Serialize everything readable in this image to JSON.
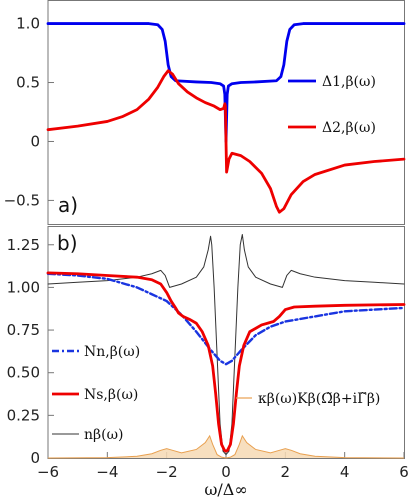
{
  "chart_data": [
    {
      "type": "line",
      "panel_label": "a)",
      "xlim": [
        -6,
        6
      ],
      "ylim": [
        -0.7,
        1.2
      ],
      "y_ticks": [
        "1.0",
        "0.5",
        "0",
        "−0.5"
      ],
      "y_tick_values": [
        1.0,
        0.5,
        0,
        -0.5
      ],
      "grid": false,
      "legend_position": "right",
      "series": [
        {
          "name": "Δ1,β(ω)",
          "color": "#0000ee",
          "points": [
            [
              -6,
              1.0
            ],
            [
              -2.6,
              1.0
            ],
            [
              -2.3,
              0.99
            ],
            [
              -2.15,
              0.95
            ],
            [
              -2.05,
              0.85
            ],
            [
              -1.95,
              0.65
            ],
            [
              -1.85,
              0.55
            ],
            [
              -1.7,
              0.515
            ],
            [
              -1.0,
              0.505
            ],
            [
              -0.5,
              0.5
            ],
            [
              -0.2,
              0.49
            ],
            [
              -0.08,
              0.47
            ],
            [
              -0.04,
              0.4
            ],
            [
              -0.02,
              0.2
            ],
            [
              0,
              0.0
            ],
            [
              0.02,
              0.2
            ],
            [
              0.04,
              0.4
            ],
            [
              0.08,
              0.47
            ],
            [
              0.2,
              0.49
            ],
            [
              0.5,
              0.5
            ],
            [
              1.0,
              0.505
            ],
            [
              1.7,
              0.515
            ],
            [
              1.85,
              0.55
            ],
            [
              1.95,
              0.65
            ],
            [
              2.05,
              0.85
            ],
            [
              2.15,
              0.95
            ],
            [
              2.3,
              0.99
            ],
            [
              2.6,
              1.0
            ],
            [
              6,
              1.0
            ]
          ]
        },
        {
          "name": "Δ2,β(ω)",
          "color": "#ee0000",
          "points": [
            [
              -6,
              0.1
            ],
            [
              -5,
              0.13
            ],
            [
              -4,
              0.17
            ],
            [
              -3.5,
              0.21
            ],
            [
              -3,
              0.27
            ],
            [
              -2.6,
              0.36
            ],
            [
              -2.3,
              0.46
            ],
            [
              -2.1,
              0.55
            ],
            [
              -1.95,
              0.6
            ],
            [
              -1.8,
              0.57
            ],
            [
              -1.6,
              0.49
            ],
            [
              -1.3,
              0.42
            ],
            [
              -1.0,
              0.37
            ],
            [
              -0.7,
              0.33
            ],
            [
              -0.4,
              0.3
            ],
            [
              -0.2,
              0.27
            ],
            [
              -0.08,
              0.28
            ],
            [
              -0.04,
              0.32
            ],
            [
              -0.02,
              0.3
            ],
            [
              0.0,
              0.0
            ],
            [
              0.02,
              -0.26
            ],
            [
              0.05,
              -0.22
            ],
            [
              0.1,
              -0.15
            ],
            [
              0.2,
              -0.1
            ],
            [
              0.5,
              -0.12
            ],
            [
              0.8,
              -0.17
            ],
            [
              1.2,
              -0.27
            ],
            [
              1.5,
              -0.4
            ],
            [
              1.7,
              -0.55
            ],
            [
              1.8,
              -0.6
            ],
            [
              1.95,
              -0.57
            ],
            [
              2.2,
              -0.45
            ],
            [
              2.6,
              -0.34
            ],
            [
              3,
              -0.28
            ],
            [
              4,
              -0.2
            ],
            [
              5,
              -0.17
            ],
            [
              6,
              -0.15
            ]
          ]
        }
      ]
    },
    {
      "type": "line",
      "panel_label": "b)",
      "xlim": [
        -6,
        6
      ],
      "ylim": [
        0,
        1.36
      ],
      "x_ticks": [
        "−6",
        "−4",
        "−2",
        "0",
        "2",
        "4",
        "6"
      ],
      "x_tick_values": [
        -6,
        -4,
        -2,
        0,
        2,
        4,
        6
      ],
      "y_ticks": [
        "1.25",
        "1.00",
        "0.75",
        "0.50",
        "0.25",
        "0"
      ],
      "y_tick_values": [
        1.25,
        1.0,
        0.75,
        0.5,
        0.25,
        0
      ],
      "xlabel": "ω/Δ∞",
      "grid": false,
      "series": [
        {
          "name": "κβ(ω)Kβ(Ω̃β+iΓ̃β)",
          "kind": "area",
          "color": "#e8a050",
          "fill": "#f6d9b4",
          "points": [
            [
              -6,
              0
            ],
            [
              -4,
              0.002
            ],
            [
              -3,
              0.01
            ],
            [
              -2.5,
              0.025
            ],
            [
              -2.2,
              0.045
            ],
            [
              -2.0,
              0.055
            ],
            [
              -1.8,
              0.045
            ],
            [
              -1.5,
              0.03
            ],
            [
              -1.0,
              0.05
            ],
            [
              -0.7,
              0.09
            ],
            [
              -0.55,
              0.13
            ],
            [
              -0.45,
              0.08
            ],
            [
              -0.3,
              0.02
            ],
            [
              -0.15,
              0.005
            ],
            [
              0,
              0.0
            ],
            [
              0.15,
              0.005
            ],
            [
              0.3,
              0.02
            ],
            [
              0.45,
              0.08
            ],
            [
              0.55,
              0.13
            ],
            [
              0.7,
              0.09
            ],
            [
              1.0,
              0.05
            ],
            [
              1.5,
              0.03
            ],
            [
              1.8,
              0.045
            ],
            [
              2.0,
              0.055
            ],
            [
              2.2,
              0.045
            ],
            [
              2.5,
              0.025
            ],
            [
              3,
              0.01
            ],
            [
              4,
              0.002
            ],
            [
              6,
              0
            ]
          ]
        },
        {
          "name": "nβ(ω)",
          "color": "#333333",
          "points": [
            [
              -6,
              1.02
            ],
            [
              -5,
              1.03
            ],
            [
              -4,
              1.04
            ],
            [
              -3,
              1.06
            ],
            [
              -2.5,
              1.08
            ],
            [
              -2.2,
              1.1
            ],
            [
              -2.05,
              1.07
            ],
            [
              -1.9,
              1.0
            ],
            [
              -1.5,
              1.02
            ],
            [
              -1.0,
              1.06
            ],
            [
              -0.75,
              1.12
            ],
            [
              -0.6,
              1.22
            ],
            [
              -0.52,
              1.3
            ],
            [
              -0.48,
              1.25
            ],
            [
              -0.4,
              1.0
            ],
            [
              -0.3,
              0.6
            ],
            [
              -0.2,
              0.2
            ],
            [
              -0.1,
              0.04
            ],
            [
              0,
              0.02
            ],
            [
              0.1,
              0.04
            ],
            [
              0.2,
              0.2
            ],
            [
              0.3,
              0.6
            ],
            [
              0.4,
              1.0
            ],
            [
              0.48,
              1.25
            ],
            [
              0.55,
              1.31
            ],
            [
              0.62,
              1.22
            ],
            [
              0.75,
              1.12
            ],
            [
              1.0,
              1.06
            ],
            [
              1.5,
              1.02
            ],
            [
              1.9,
              1.0
            ],
            [
              2.05,
              1.07
            ],
            [
              2.2,
              1.1
            ],
            [
              2.5,
              1.08
            ],
            [
              3,
              1.06
            ],
            [
              4,
              1.04
            ],
            [
              5,
              1.03
            ],
            [
              6,
              1.02
            ]
          ]
        },
        {
          "name": "Nn,β(ω)",
          "dash": "dashdot",
          "color": "#1a35e0",
          "points": [
            [
              -6,
              1.08
            ],
            [
              -5,
              1.07
            ],
            [
              -4,
              1.05
            ],
            [
              -3,
              1.0
            ],
            [
              -2.5,
              0.96
            ],
            [
              -2.0,
              0.92
            ],
            [
              -1.5,
              0.84
            ],
            [
              -1.0,
              0.74
            ],
            [
              -0.5,
              0.63
            ],
            [
              -0.2,
              0.57
            ],
            [
              0,
              0.55
            ],
            [
              0.2,
              0.57
            ],
            [
              0.5,
              0.63
            ],
            [
              1.0,
              0.72
            ],
            [
              1.5,
              0.77
            ],
            [
              2.0,
              0.8
            ],
            [
              3,
              0.83
            ],
            [
              4,
              0.86
            ],
            [
              5,
              0.87
            ],
            [
              6,
              0.88
            ]
          ]
        },
        {
          "name": "Ns,β(ω)",
          "color": "#ee0000",
          "points": [
            [
              -6,
              1.085
            ],
            [
              -5,
              1.08
            ],
            [
              -4,
              1.07
            ],
            [
              -3,
              1.06
            ],
            [
              -2.5,
              1.045
            ],
            [
              -2.2,
              1.02
            ],
            [
              -2.0,
              0.97
            ],
            [
              -1.85,
              0.92
            ],
            [
              -1.7,
              0.88
            ],
            [
              -1.6,
              0.85
            ],
            [
              -1.45,
              0.83
            ],
            [
              -1.2,
              0.81
            ],
            [
              -1.0,
              0.79
            ],
            [
              -0.8,
              0.74
            ],
            [
              -0.6,
              0.66
            ],
            [
              -0.45,
              0.54
            ],
            [
              -0.35,
              0.38
            ],
            [
              -0.25,
              0.2
            ],
            [
              -0.15,
              0.08
            ],
            [
              -0.05,
              0.045
            ],
            [
              0,
              0.04
            ],
            [
              0.05,
              0.045
            ],
            [
              0.15,
              0.08
            ],
            [
              0.25,
              0.2
            ],
            [
              0.35,
              0.38
            ],
            [
              0.45,
              0.54
            ],
            [
              0.6,
              0.66
            ],
            [
              0.8,
              0.74
            ],
            [
              1.0,
              0.76
            ],
            [
              1.2,
              0.78
            ],
            [
              1.4,
              0.79
            ],
            [
              1.6,
              0.8
            ],
            [
              1.8,
              0.83
            ],
            [
              2.0,
              0.87
            ],
            [
              2.3,
              0.885
            ],
            [
              3,
              0.89
            ],
            [
              4,
              0.895
            ],
            [
              6,
              0.9
            ]
          ]
        }
      ]
    }
  ]
}
